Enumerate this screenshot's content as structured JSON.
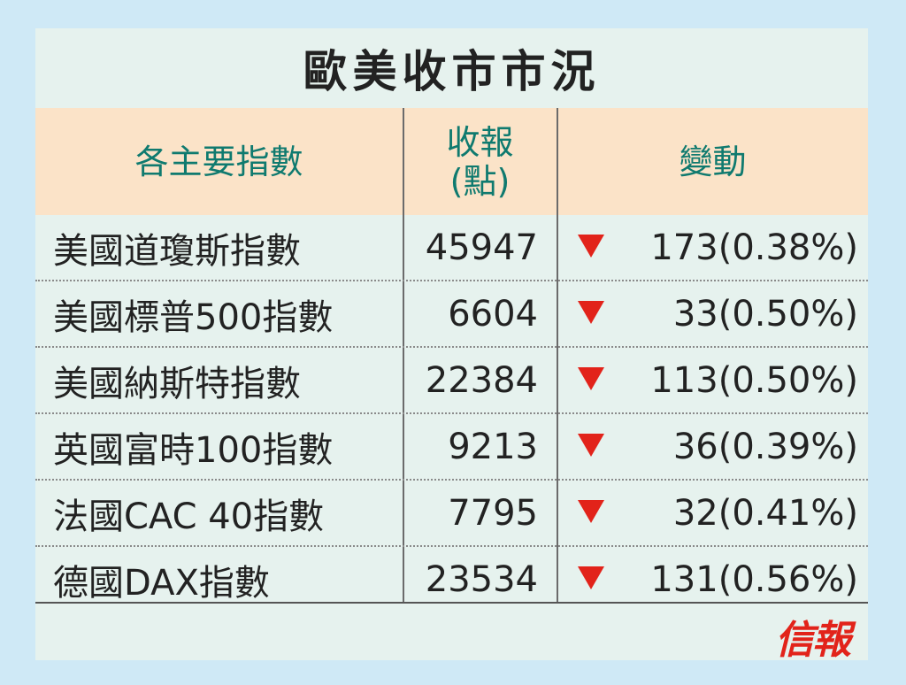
{
  "title": "歐美收市市況",
  "header": {
    "col1": "各主要指數",
    "col2_line1": "收報",
    "col2_line2": "(點)",
    "col3": "變動"
  },
  "rows": [
    {
      "name": "美國道瓊斯指數",
      "close": "45947",
      "change": "173(0.38%)",
      "direction": "down"
    },
    {
      "name": "美國標普500指數",
      "close": "6604",
      "change": "33(0.50%)",
      "direction": "down"
    },
    {
      "name": "美國納斯特指數",
      "close": "22384",
      "change": "113(0.50%)",
      "direction": "down"
    },
    {
      "name": "英國富時100指數",
      "close": "9213",
      "change": "36(0.39%)",
      "direction": "down"
    },
    {
      "name": "法國CAC 40指數",
      "close": "7795",
      "change": "32(0.41%)",
      "direction": "down"
    },
    {
      "name": "德國DAX指數",
      "close": "23534",
      "change": "131(0.56%)",
      "direction": "down"
    }
  ],
  "logo": "信報",
  "colors": {
    "background": "#cfe9f6",
    "panel": "#e6f2ee",
    "header_bg": "#fbe3c8",
    "header_text": "#0f7a6f",
    "down_arrow": "#e2231a",
    "logo": "#e2231a"
  },
  "icons": {
    "down": "down-triangle-icon"
  }
}
